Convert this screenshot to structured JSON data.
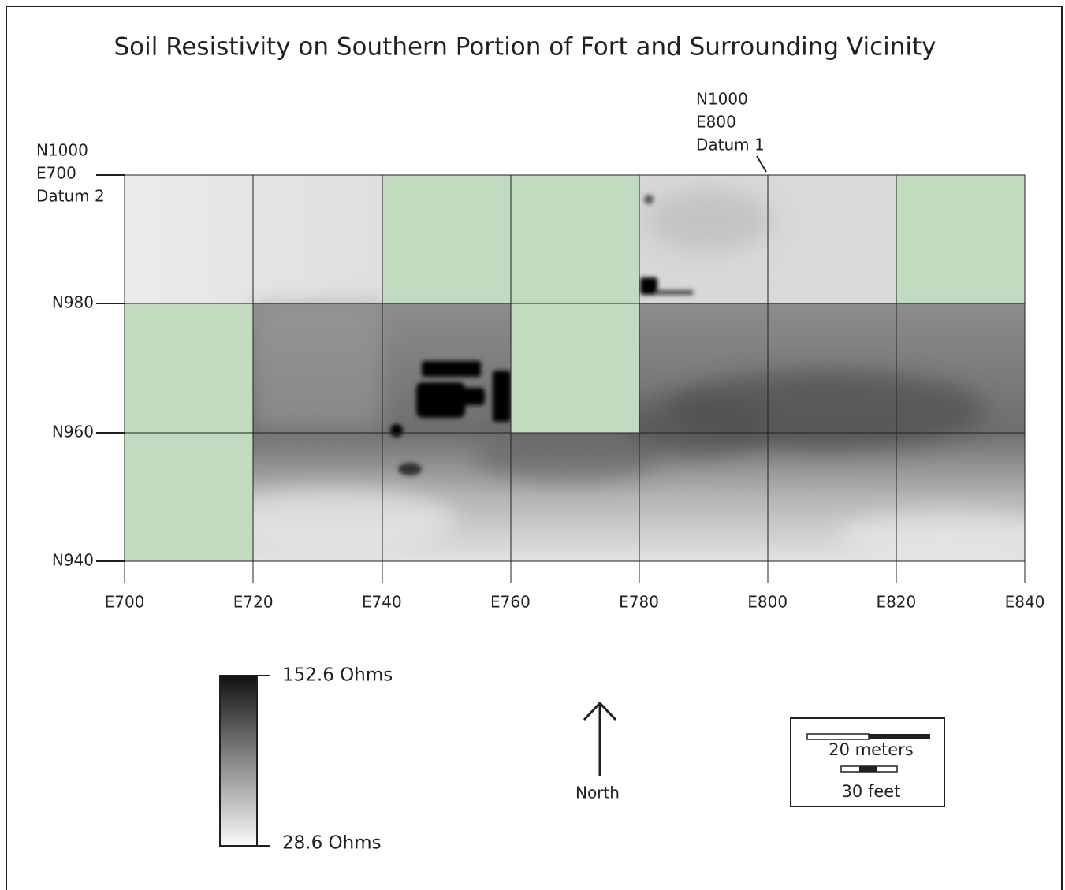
{
  "title": "Soil Resistivity on Southern Portion of Fort and Surrounding Vicinity",
  "datums": [
    {
      "lines": [
        "N1000",
        "E700",
        "Datum 2"
      ]
    },
    {
      "lines": [
        "N1000",
        "E800",
        "Datum 1"
      ]
    }
  ],
  "y_labels": [
    "N980",
    "N960",
    "N940"
  ],
  "x_labels": [
    "E700",
    "E720",
    "E740",
    "E760",
    "E780",
    "E800",
    "E820",
    "E840"
  ],
  "legend": {
    "max": "152.6 Ohms",
    "min": "28.6 Ohms"
  },
  "north": "North",
  "scale": {
    "metric": "20 meters",
    "imperial": "30 feet"
  }
}
